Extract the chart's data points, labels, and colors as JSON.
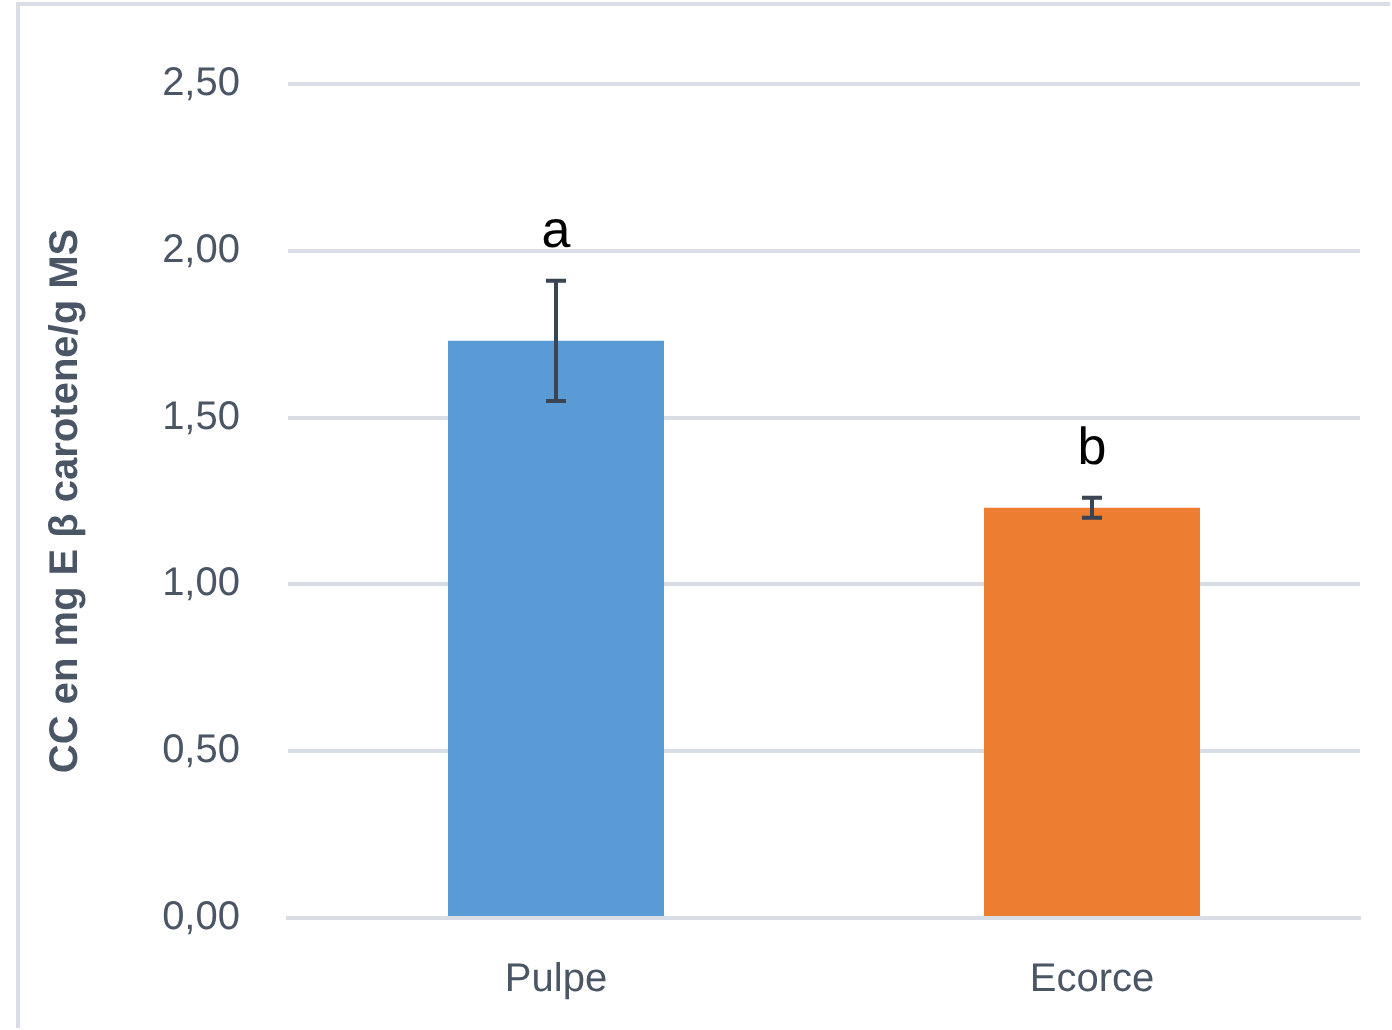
{
  "chart_data": {
    "type": "bar",
    "ylabel": "CC en mg E β carotene/g MS",
    "categories": [
      "Pulpe",
      "Ecorce"
    ],
    "values": [
      1.73,
      1.23
    ],
    "colors": [
      "#5b9bd5",
      "#ed7d31"
    ],
    "errors": [
      0.18,
      0.03
    ],
    "ylim": [
      0,
      2.5
    ],
    "yticks": [
      {
        "value": 0,
        "label": "0,00"
      },
      {
        "value": 0.5,
        "label": "0,50"
      },
      {
        "value": 1,
        "label": "1,00"
      },
      {
        "value": 1.5,
        "label": "1,50"
      },
      {
        "value": 2,
        "label": "2,00"
      },
      {
        "value": 2.5,
        "label": "2,50"
      }
    ],
    "grid": "y",
    "legend": false,
    "annotations": [
      "a",
      "b"
    ]
  }
}
